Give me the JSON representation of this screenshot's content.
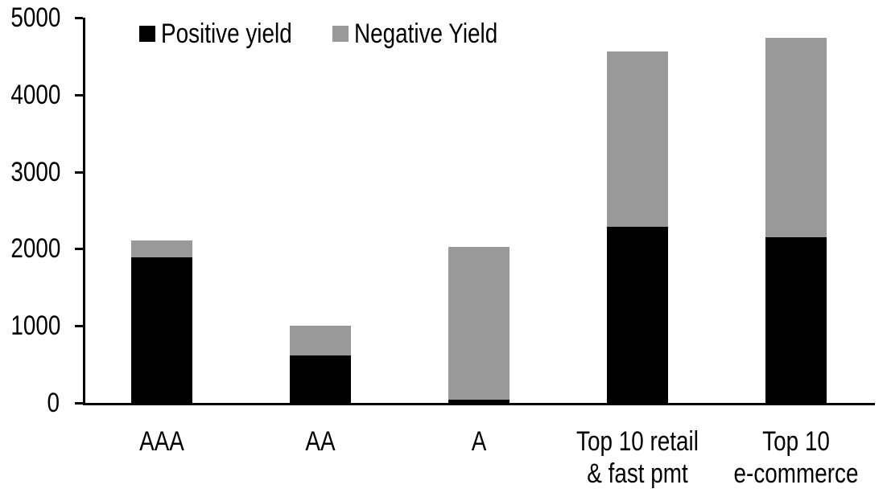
{
  "chart_data": {
    "type": "bar",
    "stacked": true,
    "title": "",
    "xlabel": "",
    "ylabel": "",
    "categories": [
      "AAA",
      "AA",
      "A",
      "Top 10 retail\n& fast pmt",
      "Top 10\ne-commerce"
    ],
    "series": [
      {
        "name": "Positive yield",
        "color": "#000000",
        "values": [
          1890,
          620,
          40,
          2290,
          2150
        ]
      },
      {
        "name": "Negative Yield",
        "color": "#999999",
        "values": [
          220,
          380,
          1990,
          2270,
          2590
        ]
      }
    ],
    "totals": [
      2110,
      1000,
      2030,
      4560,
      4740
    ],
    "ylim": [
      0,
      5000
    ],
    "yticks": [
      0,
      1000,
      2000,
      3000,
      4000,
      5000
    ],
    "grid": false,
    "legend_position": "top-inside-left"
  },
  "colors": {
    "axis": "#000000",
    "text": "#000000",
    "background": "#ffffff"
  }
}
